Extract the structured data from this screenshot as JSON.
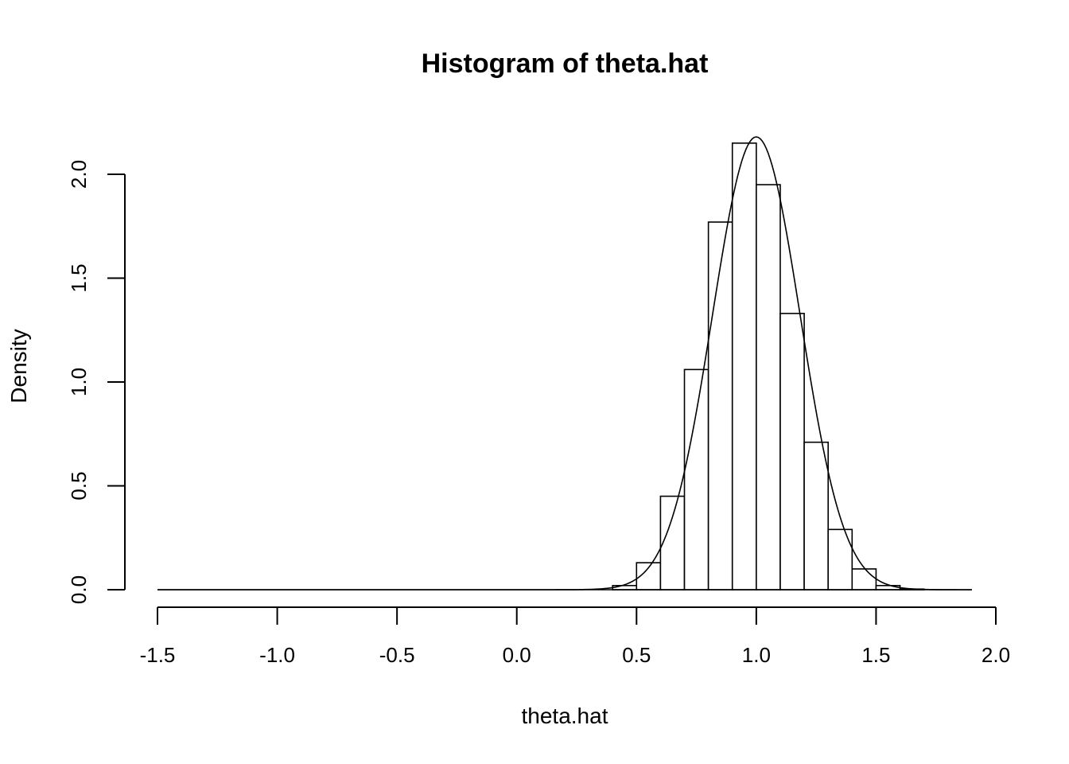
{
  "chart_data": {
    "type": "bar",
    "subtype": "histogram-with-density-curve",
    "title": "Histogram of theta.hat",
    "xlabel": "theta.hat",
    "ylabel": "Density",
    "xlim": [
      -1.5,
      1.9
    ],
    "ylim": [
      0,
      2.2
    ],
    "x_ticks": [
      -1.5,
      -1.0,
      -0.5,
      0.0,
      0.5,
      1.0,
      1.5,
      2.0
    ],
    "x_tick_labels": [
      "-1.5",
      "-1.0",
      "-0.5",
      "0.0",
      "0.5",
      "1.0",
      "1.5",
      "2.0"
    ],
    "y_ticks": [
      0.0,
      0.5,
      1.0,
      1.5,
      2.0
    ],
    "y_tick_labels": [
      "0.0",
      "0.5",
      "1.0",
      "1.5",
      "2.0"
    ],
    "grid": false,
    "bins": [
      {
        "x0": 0.3,
        "x1": 0.4,
        "density": 0.0
      },
      {
        "x0": 0.4,
        "x1": 0.5,
        "density": 0.02
      },
      {
        "x0": 0.5,
        "x1": 0.6,
        "density": 0.13
      },
      {
        "x0": 0.6,
        "x1": 0.7,
        "density": 0.45
      },
      {
        "x0": 0.7,
        "x1": 0.8,
        "density": 1.06
      },
      {
        "x0": 0.8,
        "x1": 0.9,
        "density": 1.77
      },
      {
        "x0": 0.9,
        "x1": 1.0,
        "density": 2.15
      },
      {
        "x0": 1.0,
        "x1": 1.1,
        "density": 1.95
      },
      {
        "x0": 1.1,
        "x1": 1.2,
        "density": 1.33
      },
      {
        "x0": 1.2,
        "x1": 1.3,
        "density": 0.71
      },
      {
        "x0": 1.3,
        "x1": 1.4,
        "density": 0.29
      },
      {
        "x0": 1.4,
        "x1": 1.5,
        "density": 0.1
      },
      {
        "x0": 1.5,
        "x1": 1.6,
        "density": 0.02
      },
      {
        "x0": 1.6,
        "x1": 1.7,
        "density": 0.003
      }
    ],
    "density_curve": {
      "description_note": "normal density overlay",
      "mean": 1.0,
      "sd": 0.183,
      "x_range": [
        -1.5,
        1.9
      ],
      "points": 400
    }
  }
}
